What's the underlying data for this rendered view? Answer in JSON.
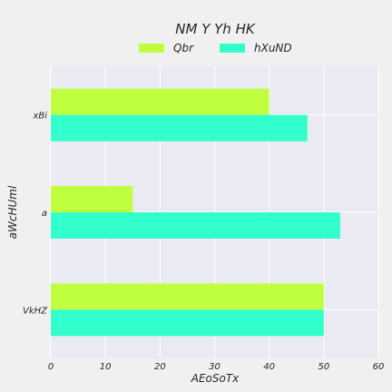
{
  "chart_data": {
    "type": "bar",
    "orientation": "horizontal",
    "title": "NM Y Yh HK",
    "xlabel": "AEoSoTx",
    "ylabel": "aWcHUml",
    "categories": [
      "xBi",
      "a",
      "VkHZ"
    ],
    "series": [
      {
        "name": "Qbr",
        "color": "#bfff3f",
        "values": [
          40,
          15,
          50
        ]
      },
      {
        "name": "hXuND",
        "color": "#33ffcc",
        "values": [
          47,
          53,
          50
        ]
      }
    ],
    "xlim": [
      0,
      60
    ],
    "xticks": [
      0,
      10,
      20,
      30,
      40,
      50,
      60
    ],
    "grid": true,
    "legend": "top-center"
  }
}
